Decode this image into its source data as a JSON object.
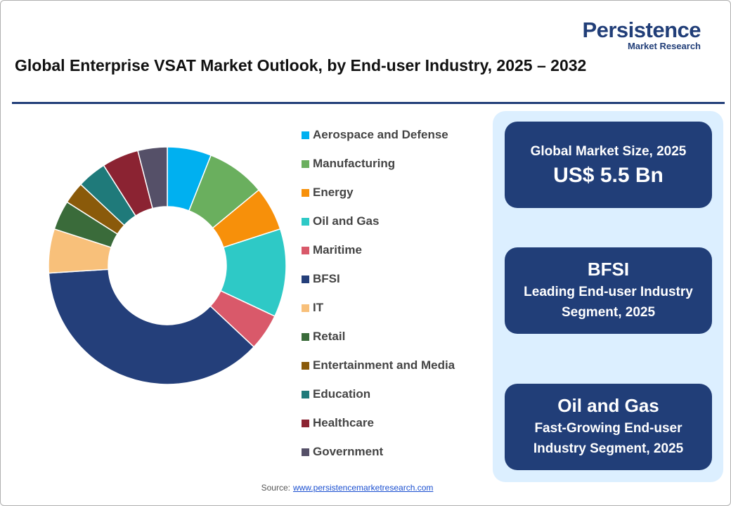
{
  "header": {
    "logo": {
      "name": "Persistence",
      "tagline": "Market Research"
    }
  },
  "chart_data": {
    "type": "donut",
    "title": "Global Enterprise VSAT Market Outlook, by End-user Industry, 2025 – 2032",
    "categories": [
      "Aerospace and Defense",
      "Manufacturing",
      "Energy",
      "Oil and Gas",
      "Maritime",
      "BFSI",
      "IT",
      "Retail",
      "Entertainment and Media",
      "Education",
      "Healthcare",
      "Government"
    ],
    "values": [
      6,
      8,
      6,
      12,
      5,
      37,
      6,
      4,
      3,
      4,
      5,
      4
    ],
    "colors": [
      "#00b0f0",
      "#6aaf5e",
      "#f7900a",
      "#2ec9c6",
      "#d9596a",
      "#243f7a",
      "#f8c07a",
      "#3a6b3a",
      "#8a5a0a",
      "#1f7a7a",
      "#8b2332",
      "#555068"
    ]
  },
  "panel": [
    {
      "label": "Global Market Size, 2025",
      "value": "US$ 5.5 Bn"
    },
    {
      "label": "BFSI",
      "value": "Leading End-user Industry Segment, 2025"
    },
    {
      "label": "Oil and Gas",
      "value": "Fast-Growing End-user Industry Segment, 2025"
    }
  ],
  "source": {
    "label": "Source:",
    "url": "www.persistencemarketresearch.com"
  }
}
